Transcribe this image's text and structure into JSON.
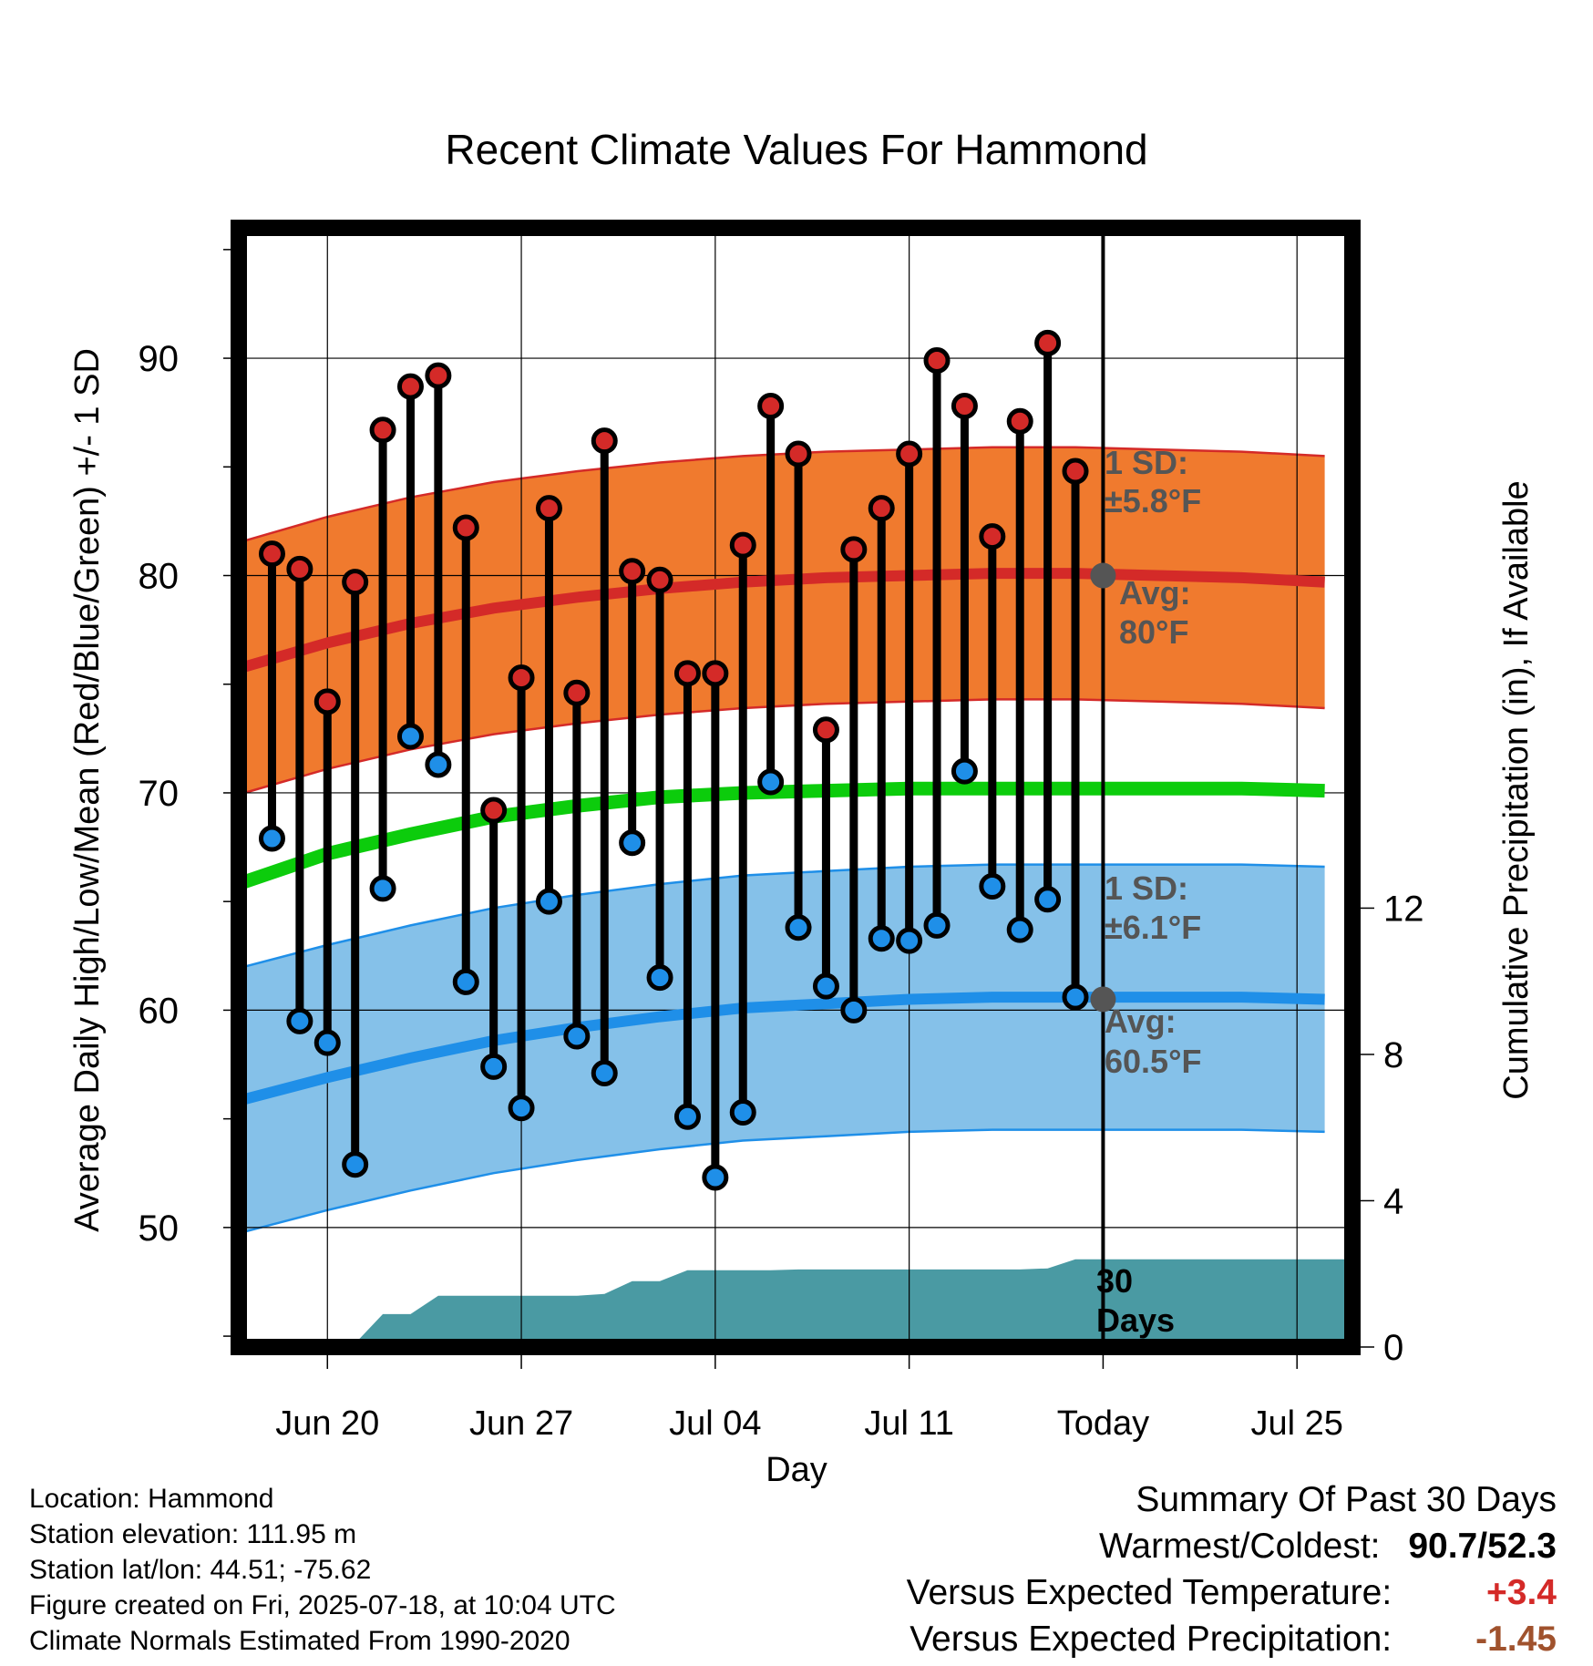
{
  "chart_data": {
    "type": "line",
    "title": "Recent Climate Values For Hammond",
    "xlabel": "Day",
    "ylabel": "Average Daily High/Low/Mean (Red/Blue/Green) +/- 1 SD",
    "y2label": "Cumulative Precipitation (in), If Available",
    "xlim": [
      -3.2,
      37.0
    ],
    "ylim": [
      44.5,
      96.0
    ],
    "y2lim": [
      0,
      30.6
    ],
    "x_ticks": [
      {
        "x": 0,
        "label": "Jun 20"
      },
      {
        "x": 7,
        "label": "Jun 27"
      },
      {
        "x": 14,
        "label": "Jul 04"
      },
      {
        "x": 21,
        "label": "Jul 11"
      },
      {
        "x": 28,
        "label": "Today"
      },
      {
        "x": 35,
        "label": "Jul 25"
      }
    ],
    "y_ticks": [
      50,
      60,
      70,
      80,
      90
    ],
    "y2_ticks": [
      0,
      4,
      8,
      12
    ],
    "today_x": 28,
    "grid": true,
    "daily_series": [
      {
        "name": "High",
        "color": "#d42a28",
        "values": [
          81.0,
          80.3,
          74.2,
          79.7,
          86.7,
          88.7,
          89.2,
          82.2,
          69.2,
          75.3,
          83.1,
          74.6,
          86.2,
          80.2,
          79.8,
          75.5,
          75.5,
          81.4,
          87.8,
          85.6,
          72.9,
          81.2,
          83.1,
          85.6,
          89.9,
          87.8,
          81.8,
          87.1,
          90.7,
          84.8
        ]
      },
      {
        "name": "Low",
        "color": "#1f8fe8",
        "values": [
          67.9,
          59.5,
          58.5,
          52.9,
          65.6,
          72.6,
          71.3,
          61.3,
          57.4,
          55.5,
          65.0,
          58.8,
          57.1,
          67.7,
          61.5,
          55.1,
          52.3,
          55.3,
          70.5,
          63.8,
          61.1,
          60.0,
          63.3,
          63.2,
          63.9,
          71.0,
          65.7,
          63.7,
          65.1,
          60.6
        ]
      }
    ],
    "day_x": [
      -2,
      -1,
      0,
      1,
      2,
      3,
      4,
      5,
      6,
      7,
      8,
      9,
      10,
      11,
      12,
      13,
      14,
      15,
      16,
      17,
      18,
      19,
      20,
      21,
      22,
      23,
      24,
      25,
      26,
      27
    ],
    "normal_x": [
      -3,
      0,
      3,
      6,
      9,
      12,
      15,
      18,
      21,
      24,
      27,
      30,
      33,
      36
    ],
    "normal_high_mean": [
      75.8,
      76.9,
      77.8,
      78.5,
      79.0,
      79.4,
      79.7,
      79.9,
      80.0,
      80.1,
      80.1,
      80.0,
      79.9,
      79.7
    ],
    "normal_high_sd": 5.8,
    "normal_low_mean": [
      55.9,
      56.9,
      57.8,
      58.6,
      59.2,
      59.7,
      60.1,
      60.3,
      60.5,
      60.6,
      60.6,
      60.6,
      60.6,
      60.5
    ],
    "normal_low_sd": 6.1,
    "normal_mean": [
      65.9,
      67.2,
      68.1,
      68.9,
      69.4,
      69.8,
      70.0,
      70.1,
      70.2,
      70.2,
      70.2,
      70.2,
      70.2,
      70.1
    ],
    "precip_cumulative": {
      "x": [
        -3,
        -2,
        -1,
        0,
        1,
        2,
        3,
        4,
        5,
        6,
        7,
        8,
        9,
        10,
        11,
        12,
        13,
        14,
        15,
        16,
        17,
        18,
        19,
        20,
        21,
        22,
        23,
        24,
        25,
        26,
        27,
        28,
        37
      ],
      "values": [
        0,
        0,
        0,
        0.1,
        0.1,
        0.9,
        0.9,
        1.4,
        1.4,
        1.4,
        1.4,
        1.4,
        1.4,
        1.45,
        1.8,
        1.8,
        2.1,
        2.1,
        2.1,
        2.1,
        2.12,
        2.12,
        2.12,
        2.12,
        2.12,
        2.12,
        2.12,
        2.12,
        2.12,
        2.15,
        2.4,
        2.4,
        2.4
      ],
      "color": "#4a9aa3"
    },
    "annotations": {
      "high_sd": "1 SD:",
      "high_sd_val": "±5.8°F",
      "high_avg": "Avg:",
      "high_avg_val": "80°F",
      "low_sd": "1 SD:",
      "low_sd_val": "±6.1°F",
      "low_avg": "Avg:",
      "low_avg_val": "60.5°F",
      "precip_line1": "30",
      "precip_line2": "Days"
    }
  },
  "info": {
    "location": "Location: Hammond",
    "elevation": "Station elevation: 111.95 m",
    "latlon": "Station lat/lon: 44.51; -75.62",
    "created": "Figure created on Fri, 2025-07-18, at 10:04 UTC",
    "normals": "Climate Normals Estimated From 1990-2020"
  },
  "summary": {
    "title": "Summary Of Past 30 Days",
    "warm_cold_label": "Warmest/Coldest:",
    "warmest": "90.7",
    "sep": "/",
    "coldest": "52.3",
    "temp_label": "Versus Expected Temperature:",
    "temp_value": "+3.4",
    "temp_color": "#d42a28",
    "precip_label": "Versus Expected Precipitation:",
    "precip_value": "-1.45",
    "precip_color": "#a0522d"
  }
}
